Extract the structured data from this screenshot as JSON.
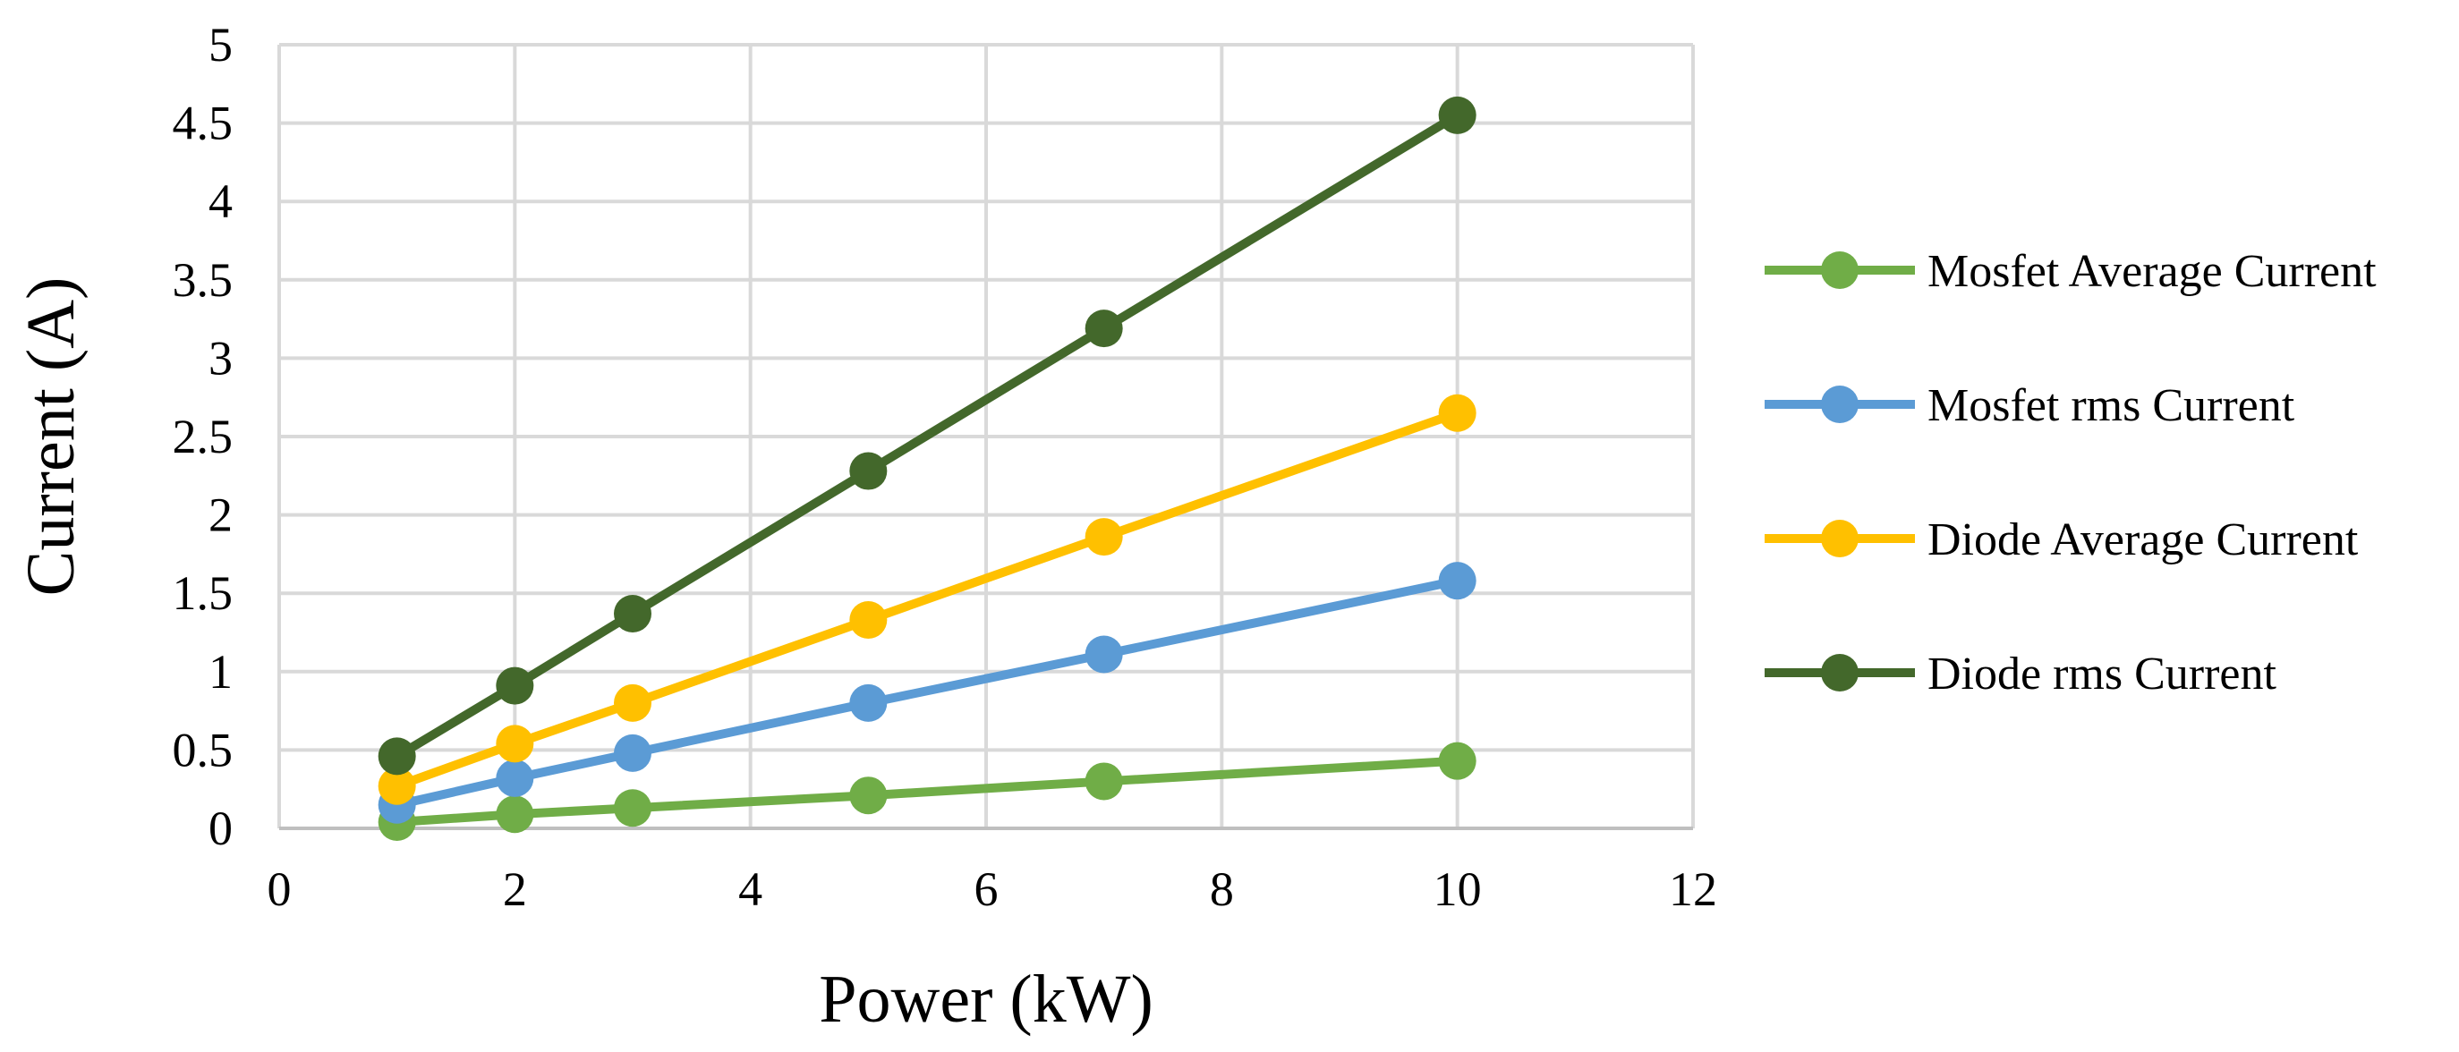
{
  "chart_data": {
    "type": "line",
    "title": "",
    "xlabel": "Power (kW)",
    "ylabel": "Current (A)",
    "xlim": [
      0,
      12
    ],
    "ylim": [
      0,
      5
    ],
    "x_ticks": [
      0,
      2,
      4,
      6,
      8,
      10,
      12
    ],
    "y_ticks": [
      0,
      0.5,
      1,
      1.5,
      2,
      2.5,
      3,
      3.5,
      4,
      4.5,
      5
    ],
    "x_tick_labels": [
      "0",
      "2",
      "4",
      "6",
      "8",
      "10",
      "12"
    ],
    "y_tick_labels": [
      "0",
      "0.5",
      "1",
      "1.5",
      "2",
      "2.5",
      "3",
      "3.5",
      "4",
      "4.5",
      "5"
    ],
    "grid": true,
    "legend_position": "right",
    "x": [
      1,
      2,
      3,
      5,
      7,
      10
    ],
    "series": [
      {
        "name": "Mosfet Average Current",
        "color": "#70AD47",
        "values": [
          0.04,
          0.09,
          0.13,
          0.21,
          0.3,
          0.43
        ]
      },
      {
        "name": "Mosfet rms Current",
        "color": "#5B9BD5",
        "values": [
          0.15,
          0.32,
          0.48,
          0.8,
          1.11,
          1.58
        ]
      },
      {
        "name": "Diode Average Current",
        "color": "#FFC000",
        "values": [
          0.27,
          0.54,
          0.8,
          1.33,
          1.86,
          2.65
        ]
      },
      {
        "name": "Diode rms Current",
        "color": "#43682B",
        "values": [
          0.46,
          0.91,
          1.37,
          2.28,
          3.19,
          4.55
        ]
      }
    ]
  }
}
